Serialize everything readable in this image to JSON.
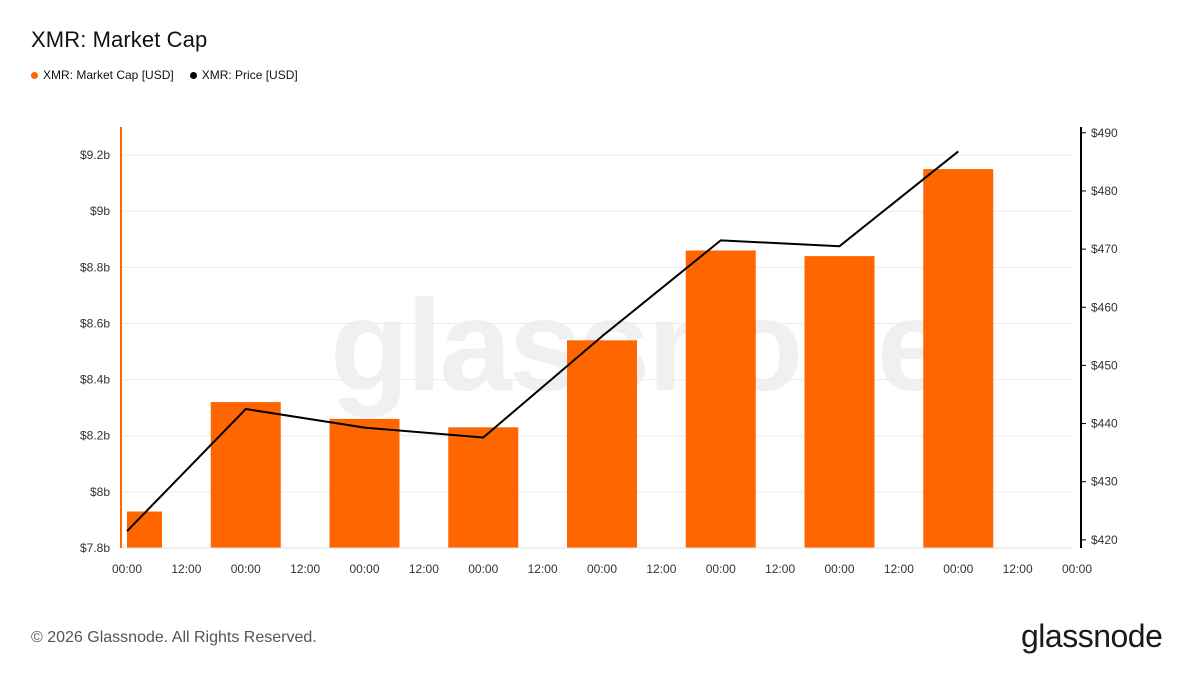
{
  "title": "XMR: Market Cap",
  "legend": [
    {
      "label": "XMR: Market Cap [USD]",
      "color": "#ff6600"
    },
    {
      "label": "XMR: Price [USD]",
      "color": "#000000"
    }
  ],
  "footer": "© 2026 Glassnode. All Rights Reserved.",
  "brand": "glassnode",
  "watermark": "glassnode",
  "chart_data": {
    "type": "bar+line",
    "x_tick_labels": [
      "00:00",
      "12:00",
      "00:00",
      "12:00",
      "00:00",
      "12:00",
      "00:00",
      "12:00",
      "00:00",
      "12:00",
      "00:00",
      "12:00",
      "00:00",
      "12:00",
      "00:00",
      "12:00",
      "00:00"
    ],
    "left_axis": {
      "ticks": [
        "$7.8b",
        "$8b",
        "$8.2b",
        "$8.4b",
        "$8.6b",
        "$8.8b",
        "$9b",
        "$9.2b"
      ],
      "tick_values": [
        7.8,
        8.0,
        8.2,
        8.4,
        8.6,
        8.8,
        9.0,
        9.2
      ],
      "range": [
        7.8,
        9.3
      ],
      "unit": "USD billions"
    },
    "right_axis": {
      "ticks": [
        "$420",
        "$430",
        "$440",
        "$450",
        "$460",
        "$470",
        "$480",
        "$490"
      ],
      "tick_values": [
        420,
        430,
        440,
        450,
        460,
        470,
        480,
        490
      ],
      "range": [
        418.6,
        491.0
      ]
    },
    "series": [
      {
        "name": "XMR: Market Cap [USD]",
        "axis": "left",
        "type": "bar",
        "color": "#ff6600",
        "values": [
          7.93,
          8.32,
          8.26,
          8.23,
          8.54,
          8.86,
          8.84,
          9.15
        ]
      },
      {
        "name": "XMR: Price [USD]",
        "axis": "right",
        "type": "line",
        "color": "#000000",
        "values": [
          421.5,
          442.5,
          439.3,
          437.6,
          455.0,
          471.5,
          470.5,
          486.8
        ]
      }
    ],
    "grid": true,
    "legend_position": "top-left"
  }
}
